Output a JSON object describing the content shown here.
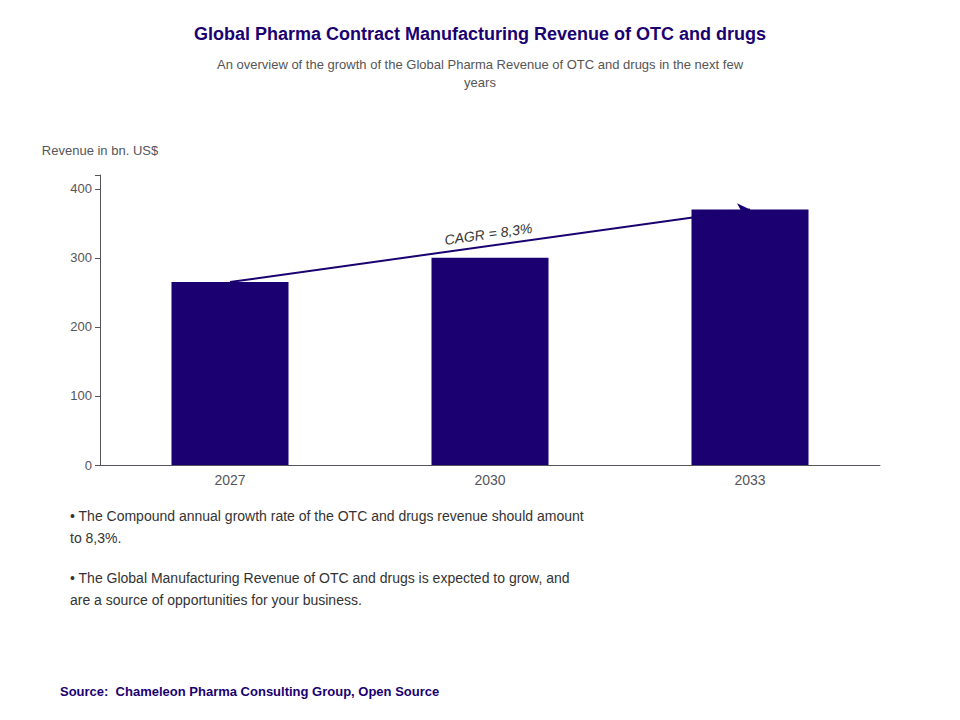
{
  "chart_data": {
    "type": "bar",
    "title": "Global Pharma Contract Manufacturing Revenue of OTC and drugs",
    "subtitle": "An overview of the growth of the Global Pharma Revenue of OTC and drugs in the next few\nyears",
    "ylabel": "Revenue in bn. US$",
    "categories": [
      "2027",
      "2030",
      "2033"
    ],
    "values": [
      265,
      300,
      370
    ],
    "color": "#1a0070",
    "ylim": [
      0,
      420
    ],
    "yticks": [
      0,
      100,
      200,
      300,
      400
    ],
    "grid": false,
    "annotations": [
      "CAGR = 8,3%",
      "• The Compound annual growth rate of the OTC and drugs revenue should amount\nto 8,3%.",
      "• The Global Manufacturing Revenue of OTC and drugs is expected to grow, and\nare a source of opportunities for your business.",
      "Source:  Chameleon Pharma Consulting Group, Open Source"
    ]
  }
}
